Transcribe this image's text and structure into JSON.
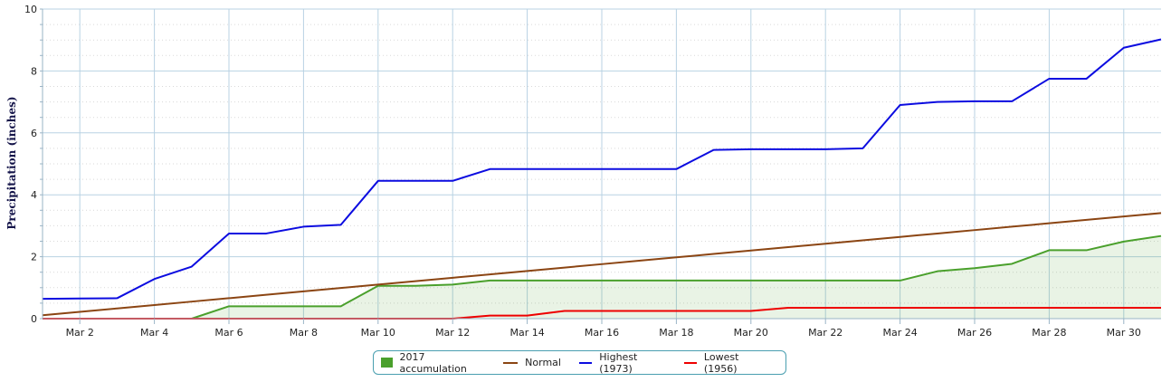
{
  "chart_data": {
    "type": "line",
    "ylabel": "Precipitation (inches)",
    "xlabel": "",
    "ylim": [
      0,
      10
    ],
    "xlim": [
      1,
      31
    ],
    "yticks": [
      "0",
      "2",
      "4",
      "6",
      "8",
      "10"
    ],
    "xtick_labels": [
      "Mar 2",
      "Mar 4",
      "Mar 6",
      "Mar 8",
      "Mar 10",
      "Mar 12",
      "Mar 14",
      "Mar 16",
      "Mar 18",
      "Mar 20",
      "Mar 22",
      "Mar 24",
      "Mar 26",
      "Mar 28",
      "Mar 30"
    ],
    "x": [
      1,
      2,
      3,
      4,
      5,
      6,
      7,
      8,
      9,
      10,
      11,
      12,
      13,
      14,
      15,
      16,
      17,
      18,
      19,
      20,
      21,
      22,
      23,
      24,
      25,
      26,
      27,
      28,
      29,
      30,
      31
    ],
    "grid": true,
    "legend_position": "bottom-center",
    "series": [
      {
        "name": "2017 accumulation",
        "type": "area",
        "color": "#4aa02c",
        "values": [
          0,
          0,
          0,
          0,
          0,
          0.4,
          0.4,
          0.4,
          0.4,
          1.06,
          1.06,
          1.1,
          1.23,
          1.23,
          1.23,
          1.23,
          1.23,
          1.23,
          1.23,
          1.23,
          1.23,
          1.23,
          1.23,
          1.23,
          1.53,
          1.63,
          1.77,
          2.21,
          2.21,
          2.49,
          2.67
        ]
      },
      {
        "name": "Normal",
        "type": "line",
        "color": "#8b4513",
        "values": [
          0.11,
          0.22,
          0.33,
          0.44,
          0.55,
          0.66,
          0.77,
          0.88,
          0.99,
          1.1,
          1.21,
          1.32,
          1.43,
          1.54,
          1.65,
          1.76,
          1.87,
          1.98,
          2.09,
          2.2,
          2.31,
          2.42,
          2.53,
          2.64,
          2.75,
          2.86,
          2.97,
          3.08,
          3.19,
          3.3,
          3.41
        ]
      },
      {
        "name": "Highest (1973)",
        "type": "line",
        "color": "#0c0ce0",
        "values": [
          0.64,
          0.65,
          0.66,
          1.28,
          1.68,
          2.75,
          2.75,
          2.97,
          3.03,
          4.45,
          4.45,
          4.45,
          4.83,
          4.83,
          4.83,
          4.83,
          4.83,
          4.83,
          5.45,
          5.47,
          5.47,
          5.47,
          5.5,
          6.9,
          7.0,
          7.02,
          7.02,
          7.75,
          7.75,
          8.75,
          9.02
        ]
      },
      {
        "name": "Lowest (1956)",
        "type": "line",
        "color": "#ee0000",
        "values": [
          0,
          0,
          0,
          0,
          0,
          0,
          0,
          0,
          0,
          0,
          0,
          0,
          0.1,
          0.1,
          0.25,
          0.25,
          0.25,
          0.25,
          0.25,
          0.25,
          0.35,
          0.35,
          0.35,
          0.35,
          0.35,
          0.35,
          0.35,
          0.35,
          0.35,
          0.35,
          0.35
        ]
      }
    ]
  }
}
